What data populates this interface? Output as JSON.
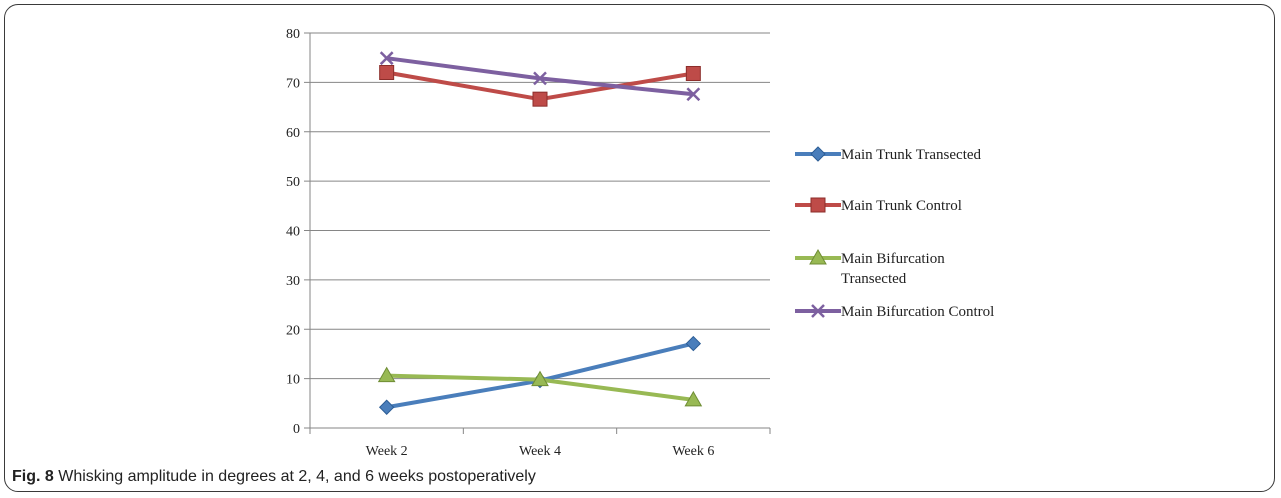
{
  "chart_data": {
    "type": "line",
    "categories": [
      "Week 2",
      "Week 4",
      "Week 6"
    ],
    "ylim": [
      0,
      80
    ],
    "yticks": [
      0,
      10,
      20,
      30,
      40,
      50,
      60,
      70,
      80
    ],
    "grid": true,
    "legend_position": "right",
    "series": [
      {
        "name": "Main Trunk Transected",
        "values": [
          4.2,
          9.6,
          17.1
        ],
        "color": "#4a7ebb",
        "marker": "diamond"
      },
      {
        "name": "Main Trunk Control",
        "values": [
          72.0,
          66.6,
          71.8
        ],
        "color": "#be4b48",
        "marker": "square"
      },
      {
        "name": "Main Bifurcation Transected",
        "legend_lines": [
          "Main Bifurcation",
          "Transected"
        ],
        "values": [
          10.6,
          9.8,
          5.7
        ],
        "color": "#98b954",
        "marker": "triangle"
      },
      {
        "name": "Main Bifurcation Control",
        "values": [
          74.9,
          70.8,
          67.6
        ],
        "color": "#7d60a0",
        "marker": "x"
      }
    ]
  },
  "caption": {
    "label": "Fig. 8",
    "text": " Whisking amplitude in degrees at 2, 4, and 6 weeks postoperatively"
  }
}
